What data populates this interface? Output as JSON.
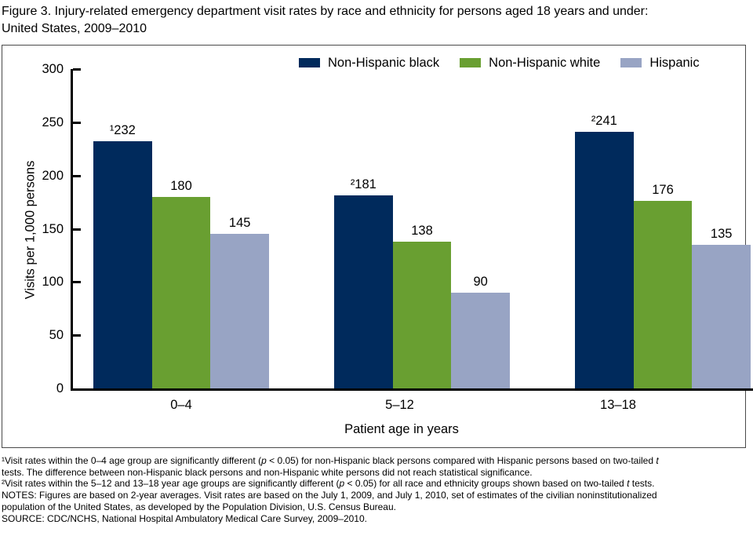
{
  "title": "Figure 3. Injury-related emergency department visit rates by race and ethnicity for persons aged 18 years and under:\nUnited States, 2009–2010",
  "chart_data": {
    "type": "bar",
    "title": "Figure 3. Injury-related emergency department visit rates by race and ethnicity for persons aged 18 years and under: United States, 2009–2010",
    "categories": [
      "0–4",
      "5–12",
      "13–18"
    ],
    "series": [
      {
        "name": "Non-Hispanic black",
        "color": "#002a5c",
        "values": [
          232,
          181,
          241
        ],
        "bar_labels": [
          "¹232",
          "²181",
          "²241"
        ]
      },
      {
        "name": "Non-Hispanic white",
        "color": "#699f31",
        "values": [
          180,
          138,
          176
        ],
        "bar_labels": [
          "180",
          "138",
          "176"
        ]
      },
      {
        "name": "Hispanic",
        "color": "#98a4c4",
        "values": [
          145,
          90,
          135
        ],
        "bar_labels": [
          "145",
          "90",
          "135"
        ]
      }
    ],
    "xlabel": "Patient age in years",
    "ylabel": "Visits per 1,000 persons",
    "ylim": [
      0,
      300
    ],
    "yticks": [
      0,
      50,
      100,
      150,
      200,
      250,
      300
    ],
    "legend_position": "top-inside",
    "grid": false
  },
  "footnotes": [
    {
      "segments": [
        {
          "t": "¹Visit rates within the 0–4 age group are significantly different ("
        },
        {
          "t": "p",
          "italic": true
        },
        {
          "t": " < 0.05) for non-Hispanic black persons  compared with Hispanic persons  based on two-tailed "
        },
        {
          "t": "t",
          "italic": true
        },
        {
          "t": "\ntests. The difference between non-Hispanic black persons and non-Hispanic white persons did not reach statistical significance."
        }
      ]
    },
    {
      "segments": [
        {
          "t": "²Visit rates within the 5–12 and 13–18 year age groups are significantly different ("
        },
        {
          "t": "p",
          "italic": true
        },
        {
          "t": " < 0.05) for all  race and ethnicity groups shown based on two-tailed "
        },
        {
          "t": "t",
          "italic": true
        },
        {
          "t": " tests."
        }
      ]
    },
    {
      "segments": [
        {
          "t": "NOTES: Figures are based on 2-year averages. Visit rates are based on the July 1, 2009, and July 1, 2010, set of estimates of the civilian noninstitutionalized\npopulation of the United States, as developed by the Population Division, U.S. Census Bureau."
        }
      ]
    },
    {
      "segments": [
        {
          "t": "SOURCE: CDC/NCHS, National Hospital Ambulatory Medical Care Survey, 2009–2010."
        }
      ]
    }
  ]
}
